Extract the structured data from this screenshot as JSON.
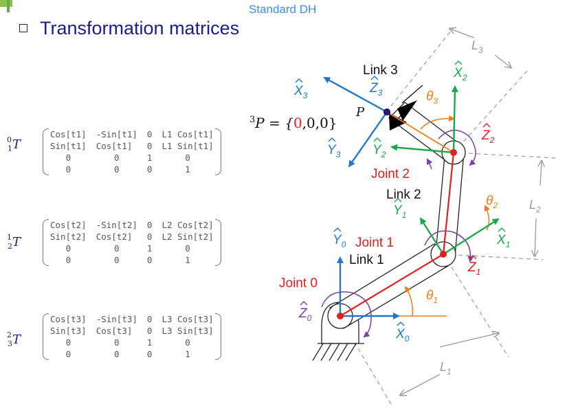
{
  "header": {
    "subtitle": "Standard DH",
    "title": "Transformation matrices"
  },
  "matrices": [
    {
      "label": "T",
      "sup": "0",
      "sub": "1",
      "rows": [
        [
          "Cos[t1]",
          "-Sin[t1]",
          "0",
          "L1 Cos[t1]"
        ],
        [
          "Sin[t1]",
          "Cos[t1]",
          "0",
          "L1 Sin[t1]"
        ],
        [
          "0",
          "0",
          "1",
          "0"
        ],
        [
          "0",
          "0",
          "0",
          "1"
        ]
      ]
    },
    {
      "label": "T",
      "sup": "1",
      "sub": "2",
      "rows": [
        [
          "Cos[t2]",
          "-Sin[t2]",
          "0",
          "L2 Cos[t2]"
        ],
        [
          "Sin[t2]",
          "Cos[t2]",
          "0",
          "L2 Sin[t2]"
        ],
        [
          "0",
          "0",
          "1",
          "0"
        ],
        [
          "0",
          "0",
          "0",
          "1"
        ]
      ]
    },
    {
      "label": "T",
      "sup": "2",
      "sub": "3",
      "rows": [
        [
          "Cos[t3]",
          "-Sin[t3]",
          "0",
          "L3 Cos[t3]"
        ],
        [
          "Sin[t3]",
          "Cos[t3]",
          "0",
          "L3 Sin[t3]"
        ],
        [
          "0",
          "0",
          "1",
          "0"
        ],
        [
          "0",
          "0",
          "0",
          "1"
        ]
      ]
    }
  ],
  "diagram": {
    "point_label": "P",
    "point_eq_prefix": "P = {",
    "point_eq_sup": "3",
    "point_eq_x": "0",
    "point_eq_rest": ",0,0}",
    "links": [
      "Link 1",
      "Link 2",
      "Link 3"
    ],
    "joints": [
      "Joint 0",
      "Joint 1",
      "Joint 2"
    ],
    "axes": {
      "x0": "X",
      "x0_sub": "0",
      "y0": "Y",
      "y0_sub": "0",
      "z0": "Z",
      "z0_sub": "0",
      "x1": "X",
      "x1_sub": "1",
      "y1": "Y",
      "y1_sub": "1",
      "z1": "Z",
      "z1_sub": "1",
      "x2": "X",
      "x2_sub": "2",
      "y2": "Y",
      "y2_sub": "2",
      "z2": "Z",
      "z2_sub": "2",
      "x3": "X",
      "x3_sub": "3",
      "y3": "Y",
      "y3_sub": "3",
      "z3": "Z",
      "z3_sub": "3"
    },
    "angles": {
      "t1": "θ",
      "t1_sub": "1",
      "t2": "θ",
      "t2_sub": "2",
      "t3": "θ",
      "t3_sub": "3"
    },
    "lengths": {
      "l1": "L",
      "l1_sub": "1",
      "l2": "L",
      "l2_sub": "2",
      "l3": "L",
      "l3_sub": "3"
    },
    "colors": {
      "title": "#1c1c8c",
      "subtitle": "#3d8ee6",
      "x_axis_blue": "#1f78c8",
      "y_axis_green": "#1ea84a",
      "joint_red": "#e02020",
      "angle_orange": "#f07c1a",
      "z_axis_purple": "#7b3fa8",
      "dimension_gray": "#9a9a9a"
    }
  }
}
